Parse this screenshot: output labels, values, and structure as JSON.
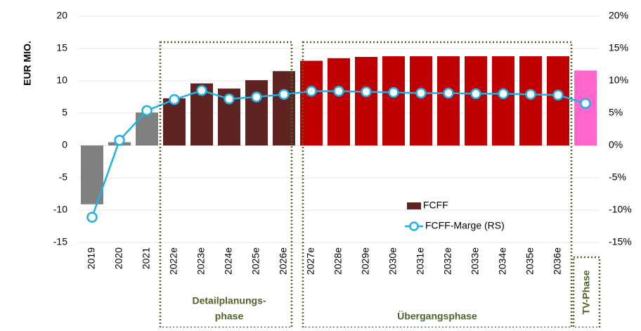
{
  "chart_data": {
    "type": "bar_line",
    "y_label": "EUR MIO.",
    "categories": [
      "2019",
      "2020",
      "2021",
      "2022e",
      "2023e",
      "2024e",
      "2025e",
      "2026e",
      "2027e",
      "2028e",
      "2029e",
      "2030e",
      "2031e",
      "2032e",
      "2033e",
      "2034e",
      "2035e",
      "2036e",
      null
    ],
    "series": [
      {
        "name": "FCFF",
        "type": "bar",
        "color": "#5f2422",
        "bar_colors": [
          "#808080",
          "#808080",
          "#808080",
          "#5f2422",
          "#5f2422",
          "#5f2422",
          "#5f2422",
          "#5f2422",
          "#c00000",
          "#c00000",
          "#c00000",
          "#c00000",
          "#c00000",
          "#c00000",
          "#c00000",
          "#c00000",
          "#c00000",
          "#c00000",
          "#ff66cc"
        ],
        "values": [
          -9.1,
          0.5,
          5.1,
          7.3,
          9.6,
          8.8,
          10.1,
          11.5,
          13.1,
          13.5,
          13.7,
          13.8,
          13.8,
          13.8,
          13.8,
          13.8,
          13.8,
          13.8,
          11.6
        ]
      },
      {
        "name": "FCFF-Marge (RS)",
        "type": "line",
        "axis": "y2",
        "color": "#1fb0e6",
        "values": [
          -11.1,
          0.8,
          5.4,
          7.1,
          8.5,
          7.2,
          7.5,
          7.9,
          8.4,
          8.4,
          8.3,
          8.2,
          8.1,
          8.1,
          8.0,
          8.0,
          7.9,
          7.8,
          6.5
        ]
      }
    ],
    "ylim": [
      -15,
      20
    ],
    "yticks": [
      -15,
      -10,
      -5,
      0,
      5,
      10,
      15,
      20
    ],
    "y2lim": [
      -15,
      20
    ],
    "y2ticks": [
      {
        "value": -15,
        "label": "-15%"
      },
      {
        "value": -10,
        "label": "-10%"
      },
      {
        "value": -5,
        "label": "-5%"
      },
      {
        "value": 0,
        "label": "0%"
      },
      {
        "value": 5,
        "label": "5%"
      },
      {
        "value": 10,
        "label": "10%"
      },
      {
        "value": 15,
        "label": "15%"
      },
      {
        "value": 20,
        "label": "20%"
      }
    ],
    "grid": true,
    "phases": [
      {
        "lines": [
          "Detailplanungs-",
          "phase"
        ]
      },
      {
        "lines": [
          "Übergangsphase"
        ]
      },
      {
        "lines": [
          "TV-Phase"
        ]
      }
    ]
  }
}
